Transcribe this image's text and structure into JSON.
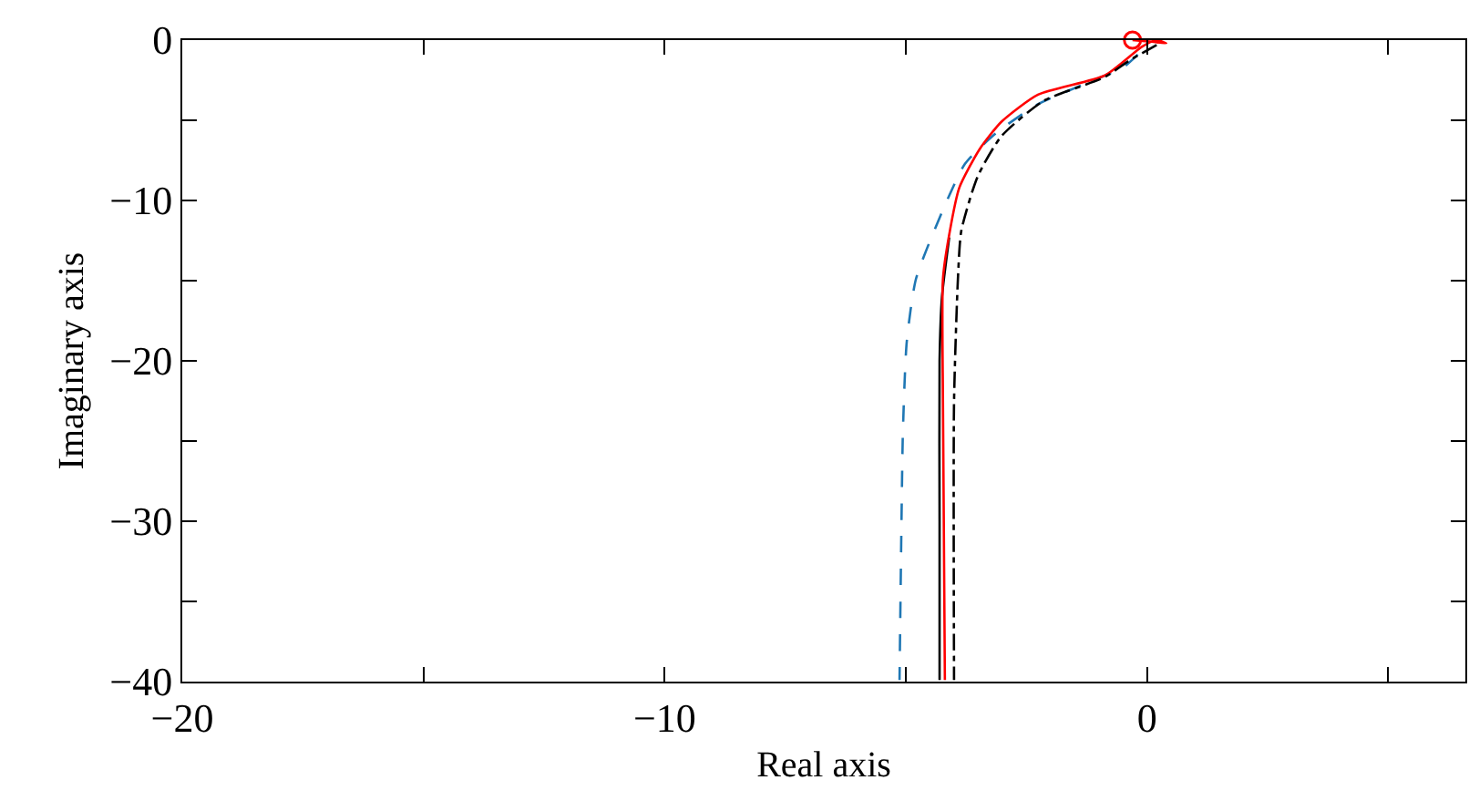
{
  "chart_data": {
    "type": "line",
    "xlabel": "Real axis",
    "ylabel": "Imaginary axis",
    "xlim": [
      -20,
      6.6
    ],
    "ylim": [
      -40,
      0
    ],
    "xticks": [
      -20,
      {
        "value": -15,
        "label": null
      },
      -10,
      {
        "value": -5,
        "label": null
      },
      0,
      {
        "value": 5,
        "label": null
      }
    ],
    "yticks": [
      -40,
      {
        "value": -35,
        "label": null
      },
      -30,
      {
        "value": -25,
        "label": null
      },
      -20,
      {
        "value": -15,
        "label": null
      },
      -10,
      {
        "value": -5,
        "label": null
      },
      0
    ],
    "grid": false,
    "series": [
      {
        "color": "#1f77b4",
        "line_style": "dashed",
        "x": [
          -0.19,
          -0.49,
          -0.94,
          -2.26,
          -3.13,
          -3.77,
          -4.26,
          -4.79,
          -4.98,
          -5.06,
          -5.09,
          -5.13
        ],
        "values": [
          -0.9,
          -1.7,
          -2.3,
          -4.0,
          -5.8,
          -7.7,
          -10.8,
          -14.9,
          -18.8,
          -24.4,
          -30.1,
          -39.9
        ]
      },
      {
        "color": "#000000",
        "line_style": "solid",
        "x": [
          -4.1,
          -4.25,
          -4.3,
          -4.3,
          -4.3
        ],
        "values": [
          -12.3,
          -16,
          -20,
          -30,
          -39.9
        ]
      },
      {
        "color": "#ff0000",
        "line_style": "solid",
        "x": [
          -0.3,
          0.1,
          0.4,
          0.2,
          -0.1,
          -0.87,
          -2.26,
          -3.02,
          -3.47,
          -3.89,
          -4.11,
          -4.23,
          -4.23,
          -4.19
        ],
        "values": [
          0,
          -0.1,
          -0.2,
          0,
          -0.4,
          -2.2,
          -3.4,
          -5.1,
          -6.8,
          -9.2,
          -12.3,
          -14.9,
          -22.5,
          -39.9
        ]
      },
      {
        "color": "#000000",
        "line_style": "dashdot",
        "x": [
          0.2,
          -0.38,
          -0.87,
          -2.15,
          -3.02,
          -3.51,
          -3.85,
          -3.92,
          -4.0,
          -4.0
        ],
        "values": [
          -0.3,
          -1.3,
          -2.3,
          -3.8,
          -6.0,
          -8.5,
          -11.9,
          -14.9,
          -22.5,
          -39.9
        ]
      },
      {
        "type": "scatter",
        "color": "#ff0000",
        "marker": "circle",
        "x": [
          -0.3
        ],
        "values": [
          0
        ]
      }
    ]
  }
}
